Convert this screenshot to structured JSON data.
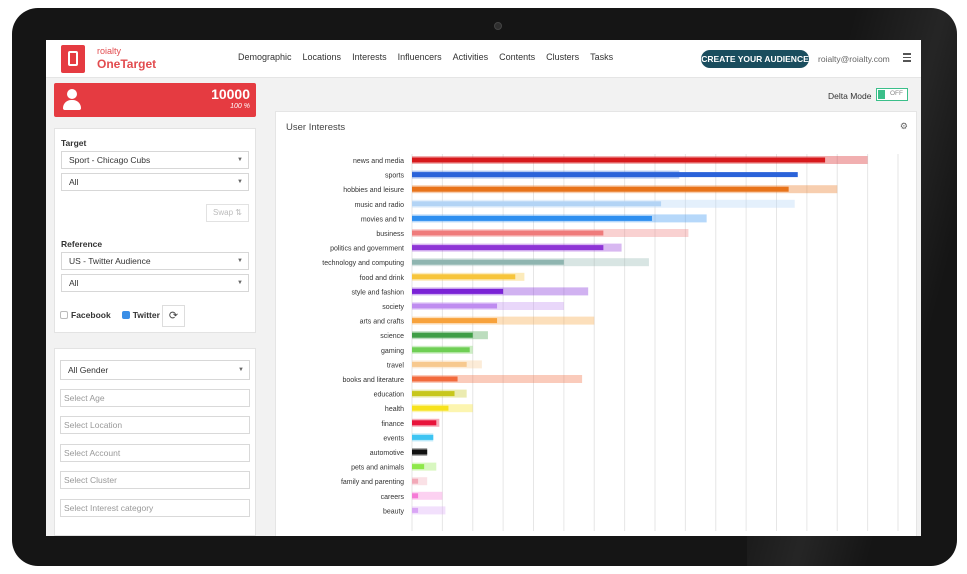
{
  "app": {
    "logo_small": "roialty",
    "logo_big": "OneTarget",
    "nav": [
      "Demographic",
      "Locations",
      "Interests",
      "Influencers",
      "Activities",
      "Contents",
      "Clusters",
      "Tasks"
    ],
    "create_button": "CREATE YOUR AUDIENCE",
    "user_email": "roialty@roialty.com",
    "colors": {
      "brand": "#e53b41",
      "cta": "#1a4d5e",
      "toggle": "#3bbf8a"
    }
  },
  "audience": {
    "count": "10000",
    "percent": "100 %"
  },
  "target": {
    "label": "Target",
    "category": "Sport - Chicago Cubs",
    "sub": "All",
    "swap_label": "Swap"
  },
  "reference": {
    "label": "Reference",
    "category": "US - Twitter Audience",
    "sub": "All"
  },
  "networks": {
    "facebook": "Facebook",
    "twitter": "Twitter",
    "facebook_checked": false,
    "twitter_checked": true
  },
  "filters": {
    "gender": "All Gender",
    "age_placeholder": "Select Age",
    "location_placeholder": "Select Location",
    "account_placeholder": "Select Account",
    "cluster_placeholder": "Select Cluster",
    "interest_placeholder": "Select Interest category"
  },
  "delta": {
    "label": "Delta Mode",
    "state": "OFF"
  },
  "chart_data": {
    "type": "bar",
    "orientation": "horizontal",
    "title": "User Interests",
    "xlim": [
      0,
      80
    ],
    "xticks": [
      0,
      5,
      10,
      15,
      20,
      25,
      30,
      35,
      40,
      45,
      50,
      55,
      60,
      65,
      70,
      75,
      80
    ],
    "grid": true,
    "categories": [
      "news and media",
      "sports",
      "hobbies and leisure",
      "music and radio",
      "movies and tv",
      "business",
      "politics and government",
      "technology and computing",
      "food and drink",
      "style and fashion",
      "society",
      "arts and crafts",
      "science",
      "gaming",
      "travel",
      "books and literature",
      "education",
      "health",
      "finance",
      "events",
      "automotive",
      "pets and animals",
      "family and parenting",
      "careers",
      "beauty"
    ],
    "series": [
      {
        "values": [
          68,
          63.5,
          62,
          41,
          39.5,
          31.5,
          31.5,
          25,
          17,
          15,
          14,
          14,
          10,
          9.5,
          9,
          7.5,
          7,
          6,
          4,
          3.5,
          2.5,
          2,
          1,
          1,
          1
        ]
      },
      {
        "values": [
          75,
          44,
          70,
          63,
          48.5,
          45.5,
          34.5,
          39,
          18.5,
          29,
          25,
          30,
          12.5,
          10,
          11.5,
          28,
          9,
          10,
          4.5,
          3.5,
          2.5,
          4,
          2.5,
          5,
          5.5
        ]
      }
    ],
    "colors": [
      "#d7191c",
      "#2b63d9",
      "#e8731a",
      "#b3d4f5",
      "#2e8ff0",
      "#ef7b7b",
      "#8e35d6",
      "#8fb5b0",
      "#f7c53b",
      "#7a22d6",
      "#bf8cf0",
      "#f7a23c",
      "#3f9e46",
      "#6fcf55",
      "#f7c98f",
      "#f26a3c",
      "#c7c71c",
      "#f7e21c",
      "#e8133a",
      "#3ec4f2",
      "#111111",
      "#8ee84a",
      "#f2a9b8",
      "#f57ad6",
      "#d9a6f5"
    ]
  }
}
